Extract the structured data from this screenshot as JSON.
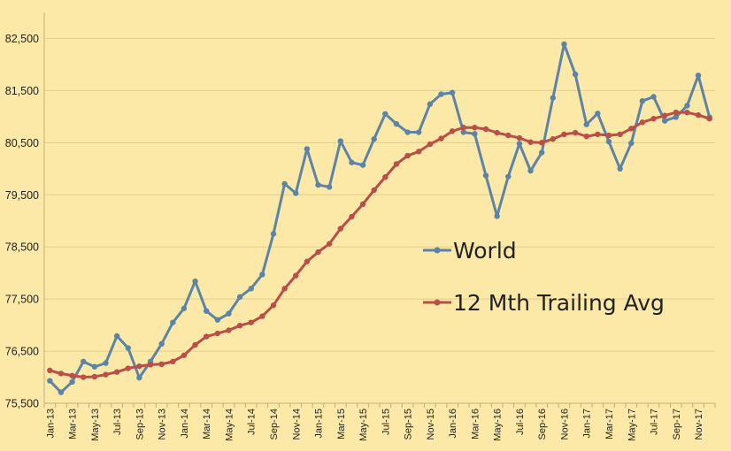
{
  "chart_data": {
    "type": "line",
    "title": "",
    "xlabel": "",
    "ylabel": "",
    "ylim": [
      75500,
      83000
    ],
    "yticks": [
      "75,500",
      "76,500",
      "77,500",
      "78,500",
      "79,500",
      "80,500",
      "81,500",
      "82,500"
    ],
    "ytick_values": [
      75500,
      76500,
      77500,
      78500,
      79500,
      80500,
      81500,
      82500
    ],
    "x": [
      "Jan-13",
      "Feb-13",
      "Mar-13",
      "Apr-13",
      "May-13",
      "Jun-13",
      "Jul-13",
      "Aug-13",
      "Sep-13",
      "Oct-13",
      "Nov-13",
      "Dec-13",
      "Jan-14",
      "Feb-14",
      "Mar-14",
      "Apr-14",
      "May-14",
      "Jun-14",
      "Jul-14",
      "Aug-14",
      "Sep-14",
      "Oct-14",
      "Nov-14",
      "Dec-14",
      "Jan-15",
      "Feb-15",
      "Mar-15",
      "Apr-15",
      "May-15",
      "Jun-15",
      "Jul-15",
      "Aug-15",
      "Sep-15",
      "Oct-15",
      "Nov-15",
      "Dec-15",
      "Jan-16",
      "Feb-16",
      "Mar-16",
      "Apr-16",
      "May-16",
      "Jun-16",
      "Jul-16",
      "Aug-16",
      "Sep-16",
      "Oct-16",
      "Nov-16",
      "Dec-16",
      "Jan-17",
      "Feb-17",
      "Mar-17",
      "Apr-17",
      "May-17",
      "Jun-17",
      "Jul-17",
      "Aug-17",
      "Sep-17",
      "Oct-17",
      "Nov-17",
      "Dec-17"
    ],
    "xtick_labels": [
      "Jan-13",
      "Mar-13",
      "May-13",
      "Jul-13",
      "Sep-13",
      "Nov-13",
      "Jan-14",
      "Mar-14",
      "May-14",
      "Jul-14",
      "Sep-14",
      "Nov-14",
      "Jan-15",
      "Mar-15",
      "May-15",
      "Jul-15",
      "Sep-15",
      "Nov-15",
      "Jan-16",
      "Mar-16",
      "May-16",
      "Jul-16",
      "Sep-16",
      "Nov-16",
      "Jan-17",
      "Mar-17",
      "May-17",
      "Jul-17",
      "Sep-17",
      "Nov-17"
    ],
    "series": [
      {
        "name": "World",
        "color": "#5b84a8",
        "values": [
          75930,
          75710,
          75910,
          76300,
          76200,
          76270,
          76790,
          76560,
          75990,
          76300,
          76640,
          77050,
          77320,
          77840,
          77270,
          77100,
          77220,
          77540,
          77700,
          77970,
          78750,
          79710,
          79530,
          80380,
          79690,
          79650,
          80530,
          80120,
          80070,
          80570,
          81050,
          80860,
          80700,
          80700,
          81240,
          81430,
          81460,
          80700,
          80670,
          79870,
          79090,
          79850,
          80480,
          79960,
          80310,
          81360,
          82390,
          81810,
          80850,
          81060,
          80520,
          80000,
          80490,
          81300,
          81380,
          80920,
          80990,
          81210,
          81790,
          80990
        ]
      },
      {
        "name": "12 Mth Trailing Avg",
        "color": "#b94f47",
        "values": [
          76130,
          76070,
          76030,
          76000,
          76010,
          76050,
          76100,
          76170,
          76210,
          76240,
          76250,
          76300,
          76420,
          76620,
          76780,
          76840,
          76900,
          76990,
          77050,
          77170,
          77380,
          77700,
          77950,
          78220,
          78400,
          78560,
          78850,
          79080,
          79320,
          79590,
          79840,
          80090,
          80250,
          80330,
          80470,
          80580,
          80720,
          80790,
          80790,
          80760,
          80690,
          80640,
          80590,
          80510,
          80500,
          80570,
          80660,
          80690,
          80620,
          80660,
          80640,
          80660,
          80770,
          80890,
          80960,
          81020,
          81080,
          81080,
          81030,
          80960
        ]
      }
    ],
    "grid": true,
    "legend_position": "right-middle"
  }
}
